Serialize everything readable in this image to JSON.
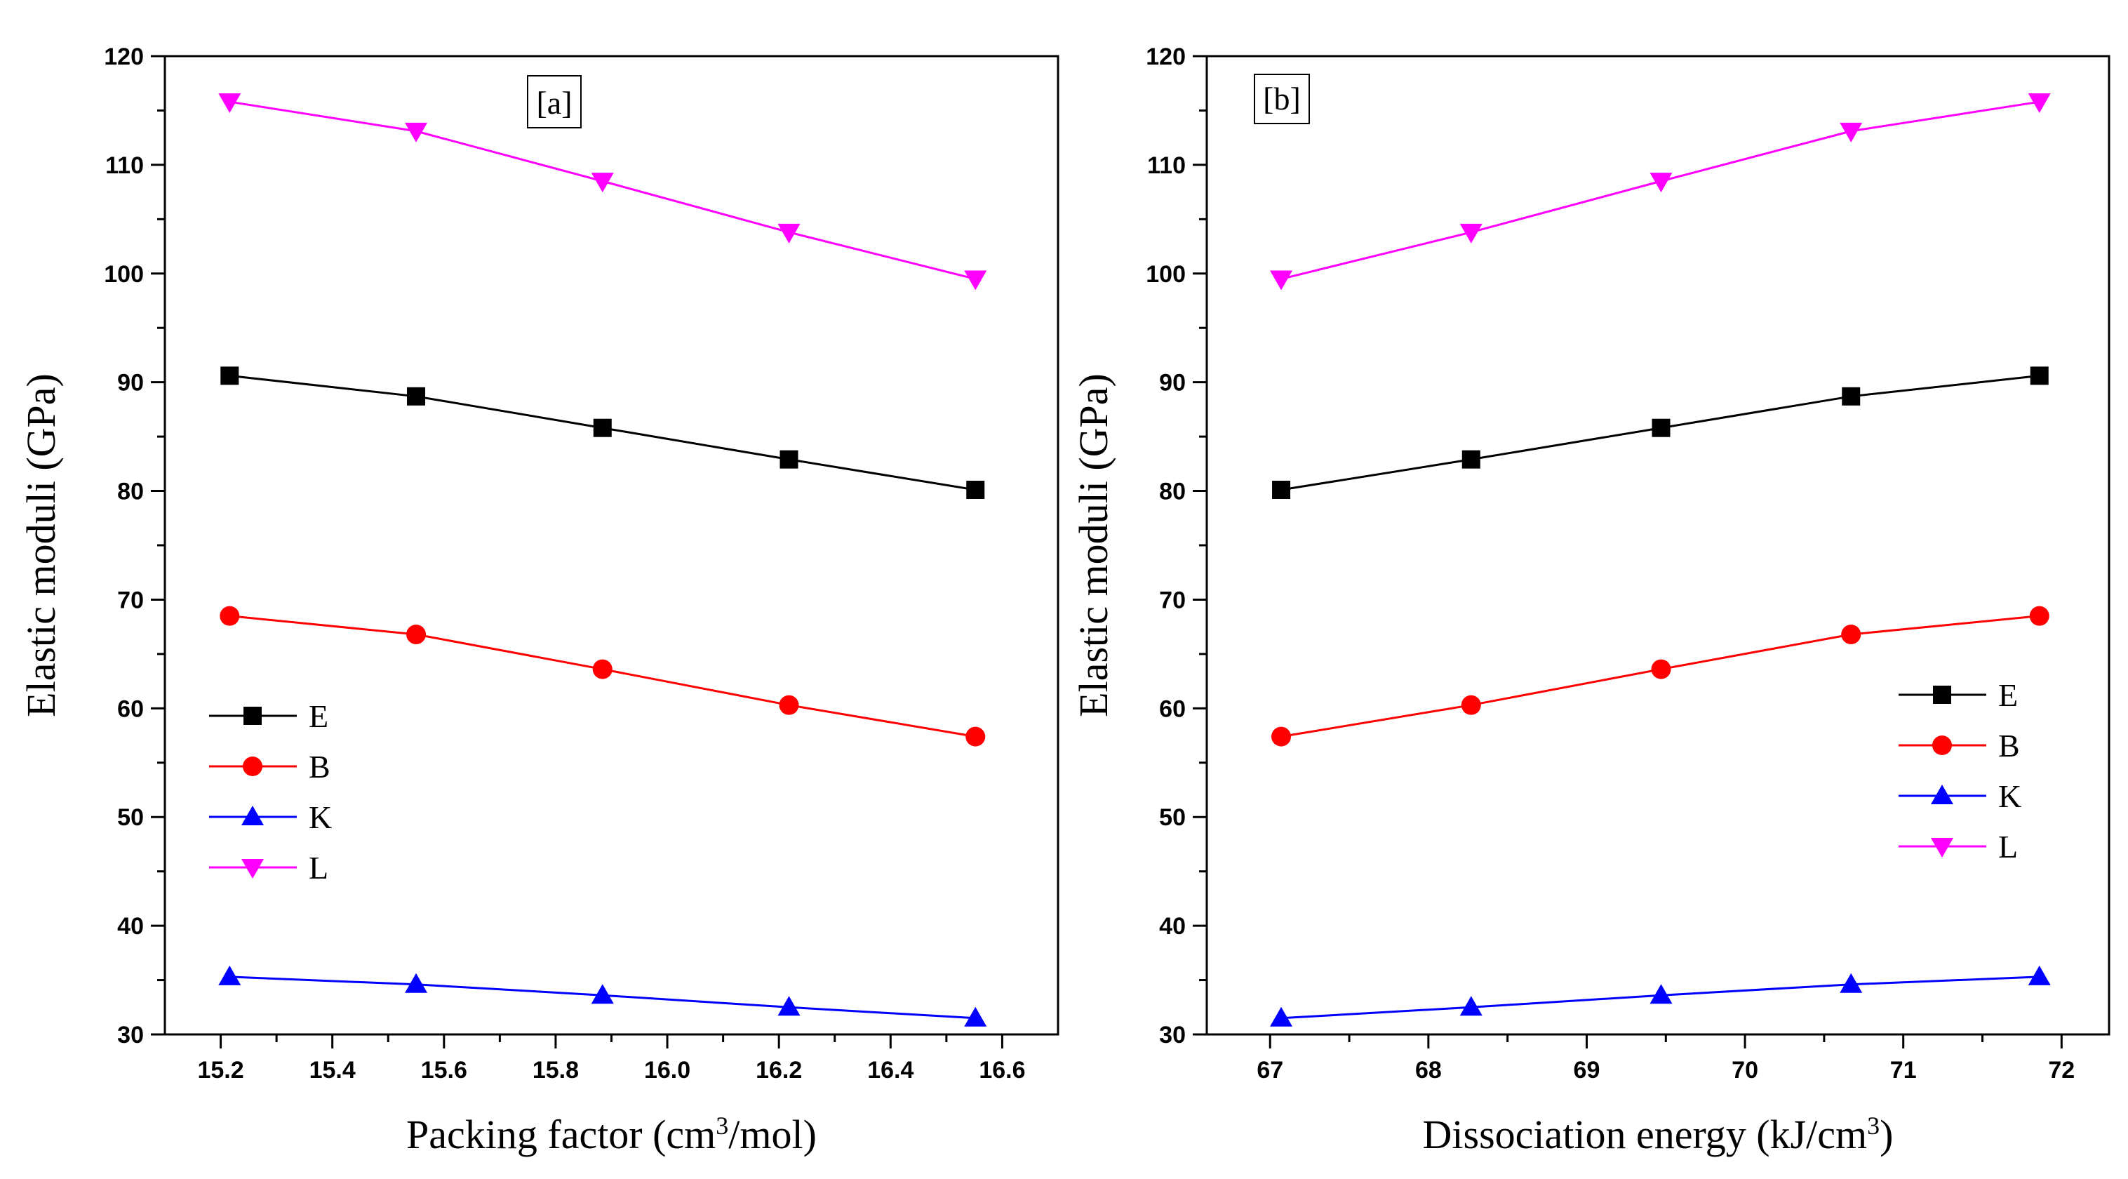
{
  "chart_data": [
    {
      "type": "line",
      "panel_label": "[a]",
      "xlabel": "Packing factor (cm",
      "xlabel_sup": "3",
      "xlabel_end": "/mol)",
      "ylabel": "Elastic moduli (GPa)",
      "xlim": [
        15.1,
        16.7
      ],
      "ylim": [
        30,
        120
      ],
      "xticks": [
        15.2,
        15.4,
        15.6,
        15.8,
        16.0,
        16.2,
        16.4,
        16.6
      ],
      "xtick_labels": [
        "15.2",
        "15.4",
        "15.6",
        "15.8",
        "16.0",
        "16.2",
        "16.4",
        "16.6"
      ],
      "yticks": [
        30,
        40,
        50,
        60,
        70,
        80,
        90,
        100,
        110,
        120
      ],
      "ytick_labels": [
        "30",
        "40",
        "50",
        "60",
        "70",
        "80",
        "90",
        "100",
        "110",
        "120"
      ],
      "legend_position": "center-left",
      "x": [
        15.216,
        15.55,
        15.884,
        16.218,
        16.552
      ],
      "series": [
        {
          "name": "E",
          "color": "#000000",
          "marker": "square",
          "values": [
            90.6,
            88.7,
            85.8,
            82.9,
            80.1
          ]
        },
        {
          "name": "B",
          "color": "#ff0000",
          "marker": "circle",
          "values": [
            68.5,
            66.8,
            63.6,
            60.3,
            57.4
          ]
        },
        {
          "name": "K",
          "color": "#0000ff",
          "marker": "triangle-up",
          "values": [
            35.3,
            34.6,
            33.6,
            32.5,
            31.5
          ]
        },
        {
          "name": "L",
          "color": "#ff00ff",
          "marker": "triangle-down",
          "values": [
            115.8,
            113.1,
            108.5,
            103.8,
            99.5
          ]
        }
      ]
    },
    {
      "type": "line",
      "panel_label": "[b]",
      "xlabel": "Dissociation energy (kJ/cm",
      "xlabel_sup": "3",
      "xlabel_end": ")",
      "ylabel": "Elastic moduli (GPa)",
      "xlim": [
        66.6,
        72.3
      ],
      "ylim": [
        30,
        120
      ],
      "xticks": [
        67,
        68,
        69,
        70,
        71,
        72
      ],
      "xtick_labels": [
        "67",
        "68",
        "69",
        "70",
        "71",
        "72"
      ],
      "yticks": [
        30,
        40,
        50,
        60,
        70,
        80,
        90,
        100,
        110,
        120
      ],
      "ytick_labels": [
        "30",
        "40",
        "50",
        "60",
        "70",
        "80",
        "90",
        "100",
        "110",
        "120"
      ],
      "legend_position": "center-right",
      "x": [
        67.07,
        68.27,
        69.47,
        70.67,
        71.86
      ],
      "series": [
        {
          "name": "E",
          "color": "#000000",
          "marker": "square",
          "values": [
            80.1,
            82.9,
            85.8,
            88.7,
            90.6
          ]
        },
        {
          "name": "B",
          "color": "#ff0000",
          "marker": "circle",
          "values": [
            57.4,
            60.3,
            63.6,
            66.8,
            68.5
          ]
        },
        {
          "name": "K",
          "color": "#0000ff",
          "marker": "triangle-up",
          "values": [
            31.5,
            32.5,
            33.6,
            34.6,
            35.3
          ]
        },
        {
          "name": "L",
          "color": "#ff00ff",
          "marker": "triangle-down",
          "values": [
            99.5,
            103.8,
            108.5,
            113.1,
            115.8
          ]
        }
      ]
    }
  ]
}
